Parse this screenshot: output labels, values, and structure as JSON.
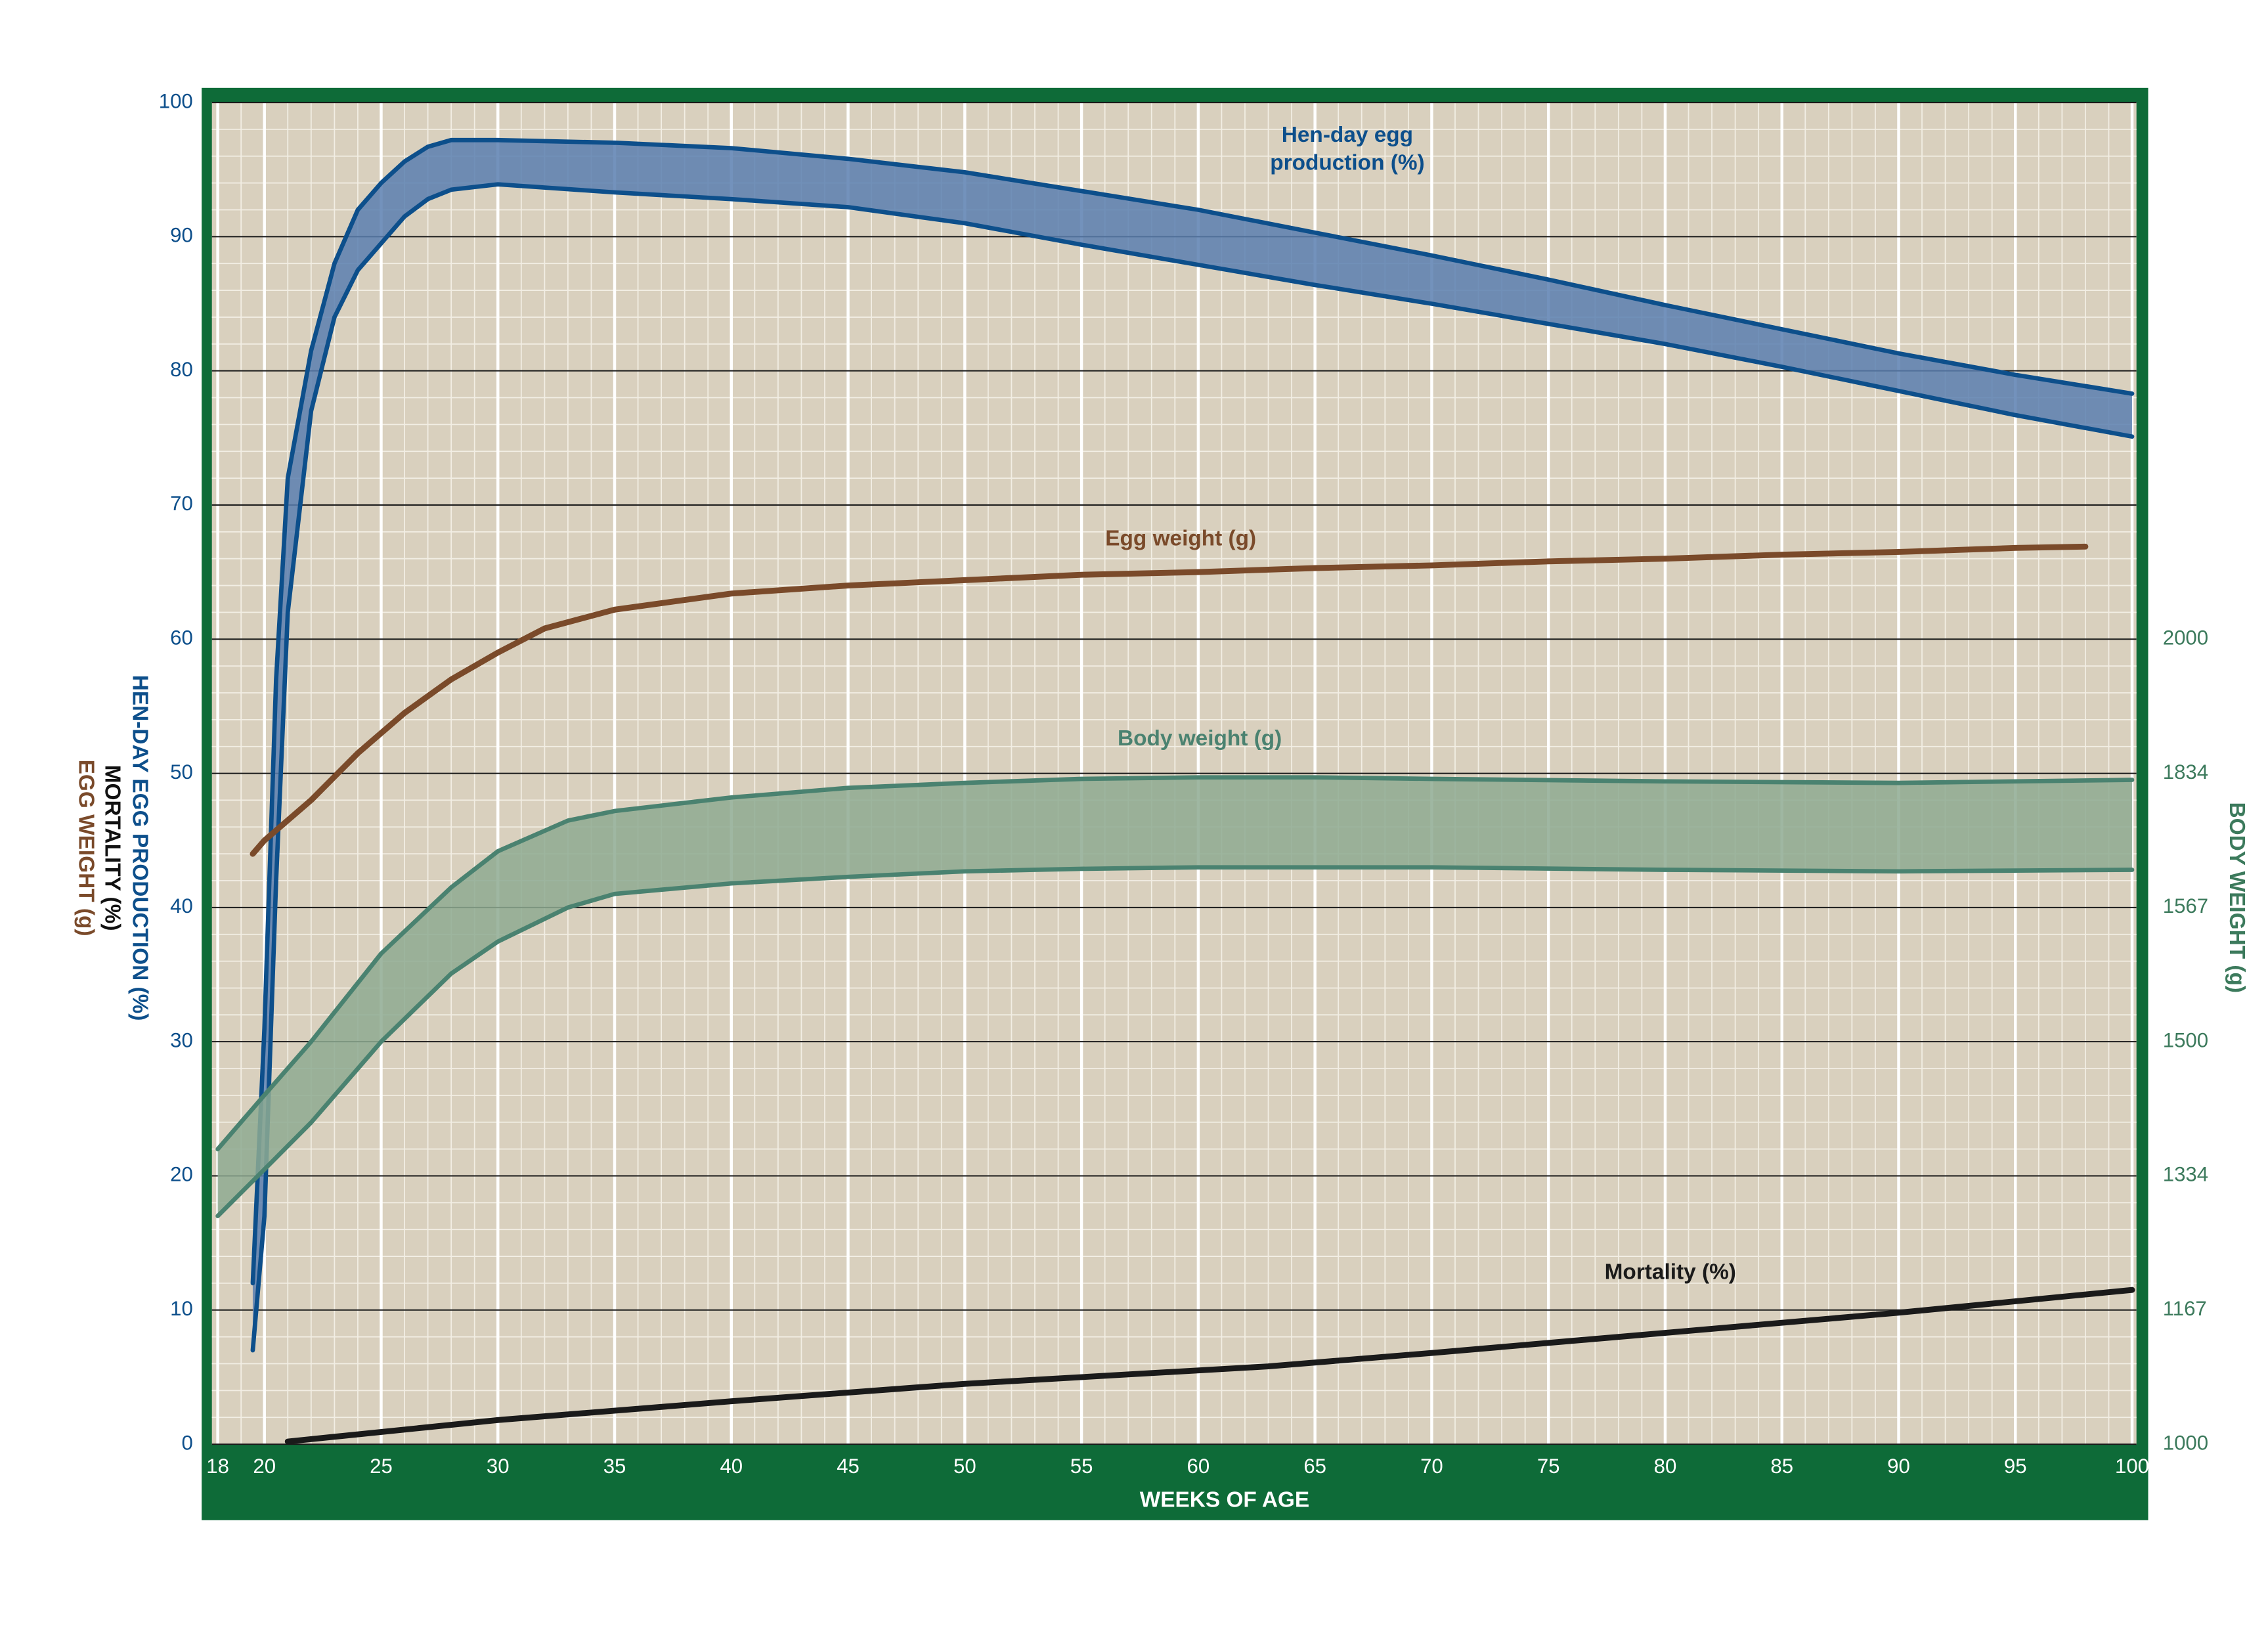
{
  "chart_data": {
    "type": "line",
    "xlabel": "WEEKS OF AGE",
    "ylabel": [
      {
        "text": "HEN-DAY EGG PRODUCTION (%)",
        "color": "#0d4f8b"
      },
      {
        "text": "MORTALITY (%)",
        "color": "#111111"
      },
      {
        "text": "EGG WEIGHT (g)",
        "color": "#7a4a2a"
      }
    ],
    "y2label": "BODY WEIGHT (g)",
    "xlim": [
      18,
      100
    ],
    "xticks": [
      18,
      20,
      25,
      30,
      35,
      40,
      45,
      50,
      55,
      60,
      65,
      70,
      75,
      80,
      85,
      90,
      95,
      100
    ],
    "ylim": [
      0,
      100
    ],
    "yticks": [
      0,
      10,
      20,
      30,
      40,
      50,
      60,
      70,
      80,
      90,
      100
    ],
    "y2ticks": [
      1000,
      1167,
      1334,
      1500,
      1567,
      1834,
      2000
    ],
    "grid": true,
    "minor_grid": {
      "x_step": 1,
      "y_step": 2
    },
    "series": [
      {
        "name": [
          "Hen-day egg",
          "production (%)"
        ],
        "color": "#0d4f8b",
        "fill": "#5a7fb0",
        "x": [
          19.5,
          20,
          20.5,
          21,
          22,
          23,
          24,
          25,
          26,
          27,
          28,
          30,
          35,
          40,
          45,
          50,
          55,
          60,
          65,
          70,
          75,
          80,
          85,
          90,
          95,
          100
        ],
        "values": [
          12,
          31,
          57,
          72,
          81.5,
          88,
          92,
          94,
          95.6,
          96.7,
          97.2,
          97.2,
          97,
          96.6,
          95.8,
          94.8,
          93.4,
          92,
          90.3,
          88.6,
          86.8,
          84.9,
          83.1,
          81.3,
          79.7,
          78.3
        ],
        "values_low": [
          7,
          17,
          42,
          62,
          77,
          84,
          87.5,
          89.5,
          91.5,
          92.8,
          93.5,
          93.9,
          93.3,
          92.8,
          92.2,
          91,
          89.4,
          87.9,
          86.4,
          85,
          83.5,
          82,
          80.3,
          78.5,
          76.7,
          75.1
        ]
      },
      {
        "name": [
          "Egg weight (g)"
        ],
        "color": "#7a4a2a",
        "x": [
          19.5,
          20,
          22,
          24,
          26,
          28,
          30,
          32,
          35,
          40,
          45,
          50,
          55,
          60,
          65,
          70,
          75,
          80,
          85,
          90,
          95,
          98
        ],
        "values": [
          44,
          45,
          48,
          51.5,
          54.5,
          57,
          59,
          60.8,
          62.2,
          63.4,
          64,
          64.4,
          64.8,
          65,
          65.3,
          65.5,
          65.8,
          66,
          66.3,
          66.5,
          66.8,
          66.9
        ]
      },
      {
        "name": [
          "Body weight (g)"
        ],
        "color": "#4a8270",
        "fill": "#8eaa92",
        "axis": "y2",
        "x": [
          18,
          20,
          22,
          25,
          28,
          30,
          33,
          35,
          40,
          45,
          50,
          55,
          60,
          65,
          70,
          80,
          90,
          100
        ],
        "values": [
          1367,
          1434,
          1500,
          1544,
          1607,
          1679,
          1740,
          1759,
          1786,
          1805,
          1815,
          1823,
          1826,
          1826,
          1823,
          1818,
          1815,
          1821
        ],
        "values_low": [
          1284,
          1342,
          1400,
          1500,
          1534,
          1550,
          1567,
          1594,
          1615,
          1628,
          1639,
          1644,
          1647,
          1647,
          1647,
          1642,
          1639,
          1642
        ]
      },
      {
        "name": [
          "Mortality (%)"
        ],
        "color": "#1a1a1a",
        "x": [
          21,
          30,
          40,
          50,
          63,
          70,
          80,
          90,
          100
        ],
        "values": [
          0.2,
          1.8,
          3.2,
          4.5,
          5.8,
          6.8,
          8.3,
          9.8,
          11.5
        ]
      }
    ]
  }
}
